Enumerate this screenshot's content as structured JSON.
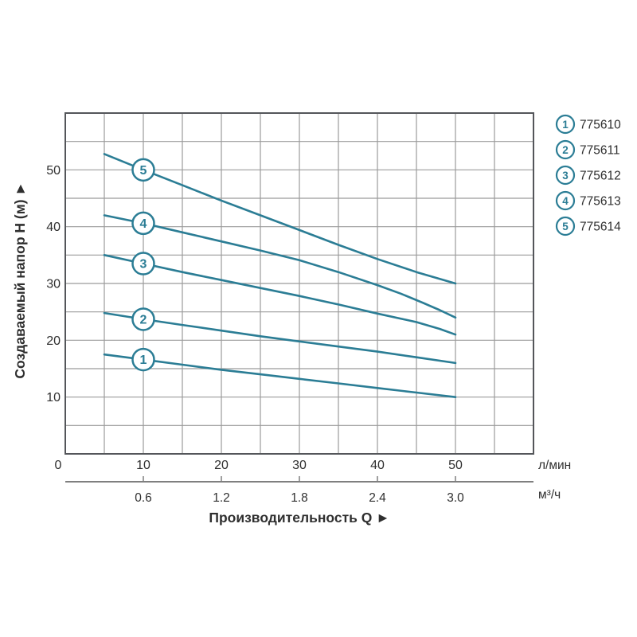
{
  "colors": {
    "accent_teal": "#2B7D95",
    "grid": "#9B9B9B",
    "plot_border": "#54565A",
    "text_dark": "#2F2F2F",
    "secondary_scale_line": "#7F7F7F",
    "marker_fill": "#FFFFFF"
  },
  "chart_data": {
    "type": "line",
    "title": "",
    "x_title": "Производительность Q ►",
    "y_title": "Создаваемый напор H (м) ►",
    "unit_primary": "л/мин",
    "unit_secondary": "м³/ч",
    "xlim": [
      0,
      60
    ],
    "ylim": [
      0,
      60
    ],
    "grid_step": 5,
    "grid_on": true,
    "x_ticks_primary": [
      0,
      10,
      20,
      30,
      40,
      50
    ],
    "x_ticks_secondary": {
      "labels": [
        "0.6",
        "1.2",
        "1.8",
        "2.4",
        "3.0"
      ],
      "at_lmin": [
        10,
        20,
        30,
        40,
        50
      ]
    },
    "y_ticks": [
      10,
      20,
      30,
      40,
      50
    ],
    "legend_position": "right",
    "series": [
      {
        "marker": "1",
        "model": "775610",
        "marker_at_q": 10,
        "points": [
          [
            5,
            17.5
          ],
          [
            10,
            16.6
          ],
          [
            15,
            15.7
          ],
          [
            20,
            14.8
          ],
          [
            25,
            14.0
          ],
          [
            30,
            13.2
          ],
          [
            35,
            12.4
          ],
          [
            40,
            11.6
          ],
          [
            45,
            10.8
          ],
          [
            50,
            10.0
          ]
        ]
      },
      {
        "marker": "2",
        "model": "775611",
        "marker_at_q": 10,
        "points": [
          [
            5,
            24.8
          ],
          [
            10,
            23.7
          ],
          [
            15,
            22.7
          ],
          [
            20,
            21.7
          ],
          [
            25,
            20.7
          ],
          [
            30,
            19.8
          ],
          [
            35,
            18.9
          ],
          [
            40,
            18.0
          ],
          [
            45,
            17.0
          ],
          [
            50,
            16.0
          ]
        ]
      },
      {
        "marker": "3",
        "model": "775612",
        "marker_at_q": 10,
        "points": [
          [
            5,
            35.0
          ],
          [
            10,
            33.5
          ],
          [
            15,
            32.0
          ],
          [
            20,
            30.6
          ],
          [
            25,
            29.2
          ],
          [
            30,
            27.8
          ],
          [
            35,
            26.3
          ],
          [
            40,
            24.7
          ],
          [
            45,
            23.2
          ],
          [
            48,
            22.0
          ],
          [
            50,
            21.0
          ]
        ]
      },
      {
        "marker": "4",
        "model": "775613",
        "marker_at_q": 10,
        "points": [
          [
            5,
            42.0
          ],
          [
            10,
            40.6
          ],
          [
            15,
            39.0
          ],
          [
            20,
            37.4
          ],
          [
            25,
            35.8
          ],
          [
            30,
            34.1
          ],
          [
            35,
            32.0
          ],
          [
            40,
            29.7
          ],
          [
            43,
            28.2
          ],
          [
            46,
            26.5
          ],
          [
            48,
            25.3
          ],
          [
            50,
            24.0
          ]
        ]
      },
      {
        "marker": "5",
        "model": "775614",
        "marker_at_q": 10,
        "points": [
          [
            5,
            52.8
          ],
          [
            10,
            50.0
          ],
          [
            15,
            47.3
          ],
          [
            20,
            44.6
          ],
          [
            25,
            42.0
          ],
          [
            30,
            39.4
          ],
          [
            35,
            36.8
          ],
          [
            40,
            34.3
          ],
          [
            45,
            32.0
          ],
          [
            50,
            30.0
          ]
        ]
      }
    ]
  }
}
